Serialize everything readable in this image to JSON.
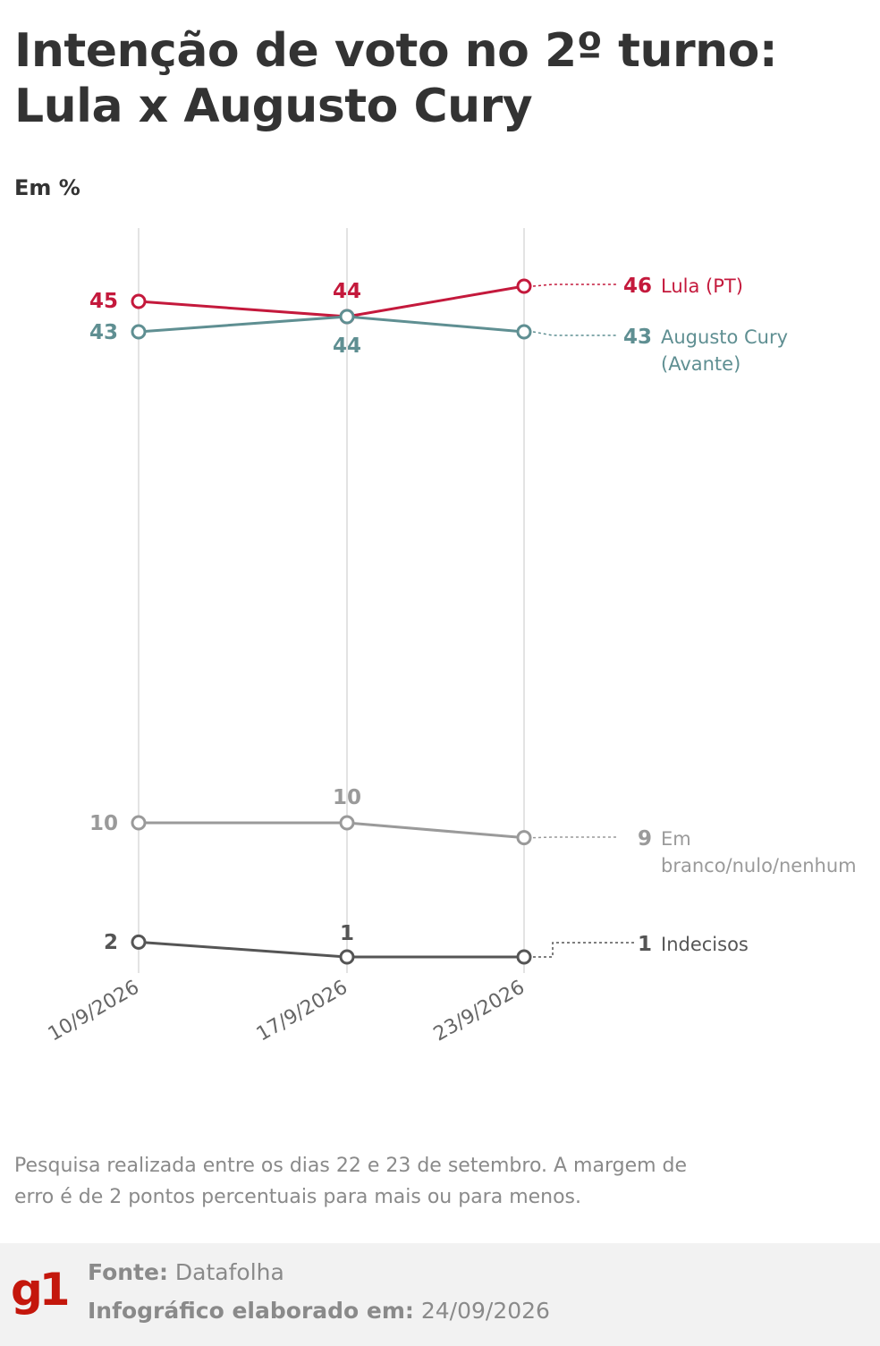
{
  "header": {
    "title": "Intenção de voto no 2º turno: Lula x Augusto Cury",
    "unit": "Em %"
  },
  "chart_data": {
    "type": "line",
    "x": [
      "10/9/2026",
      "17/9/2026",
      "23/9/2026"
    ],
    "series": [
      {
        "name": "Lula (PT)",
        "values": [
          45,
          44,
          46
        ],
        "color": "#c4193c",
        "labels": [
          "45",
          "44",
          "46"
        ]
      },
      {
        "name": "Augusto Cury (Avante)",
        "values": [
          43,
          44,
          43
        ],
        "color": "#5f8f92",
        "labels": [
          "43",
          "44",
          "43"
        ]
      },
      {
        "name": "Em branco/nulo/nenhum",
        "values": [
          10,
          10,
          9
        ],
        "color": "#9a9a9a",
        "labels": [
          "10",
          "10",
          "9"
        ]
      },
      {
        "name": "Indecisos",
        "values": [
          2,
          1,
          1
        ],
        "color": "#555555",
        "labels": [
          "2",
          "1",
          "1"
        ]
      }
    ],
    "end_labels": {
      "lula": {
        "line1": "Lula (PT)",
        "line2": ""
      },
      "cury": {
        "line1": "Augusto Cury",
        "line2": "(Avante)"
      },
      "branco": {
        "line1": "Em",
        "line2": "branco/nulo/nenhum"
      },
      "indecisos": {
        "line1": "Indecisos",
        "line2": ""
      }
    },
    "grid": "vertical",
    "ylim": [
      1,
      46
    ]
  },
  "note": "Pesquisa realizada entre os dias 22 e 23 de setembro. A margem de erro é de 2 pontos percentuais para mais ou para menos.",
  "footer": {
    "logo": "g1",
    "source_label": "Fonte:",
    "source_value": "Datafolha",
    "date_label": "Infográfico elaborado em:",
    "date_value": "24/09/2026"
  }
}
